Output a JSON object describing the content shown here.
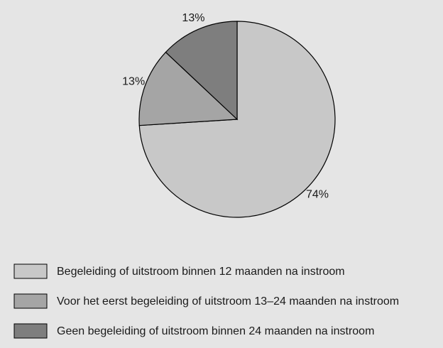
{
  "chart_data": {
    "type": "pie",
    "categories": [
      "Begeleiding of uitstroom binnen 12 maanden na instroom",
      "Voor het eerst begeleiding of uitstroom 13–24 maanden na instroom",
      "Geen begeleiding of uitstroom binnen 24 maanden na instroom"
    ],
    "values": [
      74,
      13,
      13
    ],
    "value_labels": [
      "74%",
      "13%",
      "13%"
    ],
    "colors": [
      "#c8c8c8",
      "#a5a5a5",
      "#7e7e7e"
    ]
  }
}
